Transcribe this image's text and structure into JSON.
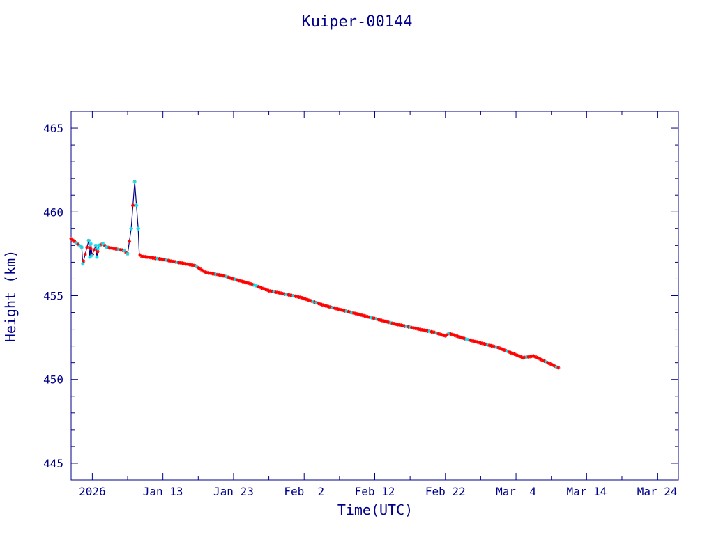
{
  "chart_data": {
    "type": "line",
    "title": "Kuiper-00144",
    "xlabel": "Time(UTC)",
    "ylabel": "Height (km)",
    "x_tick_labels": [
      "2026",
      "Jan 13",
      "Jan 23",
      "Feb  2",
      "Feb 12",
      "Feb 22",
      "Mar  4",
      "Mar 14",
      "Mar 24"
    ],
    "x_tick_dates": [
      "2026-01-03",
      "2026-01-13",
      "2026-01-23",
      "2026-02-02",
      "2026-02-12",
      "2026-02-22",
      "2026-03-04",
      "2026-03-14",
      "2026-03-24"
    ],
    "y_tick_labels": [
      "445",
      "450",
      "455",
      "460",
      "465"
    ],
    "xlim": [
      "2025-12-31",
      "2026-03-27"
    ],
    "ylim": [
      444,
      466
    ],
    "grid": false,
    "colors": {
      "axis": "#00008b",
      "line": "#00008b",
      "marker_primary": "#ff0000",
      "marker_secondary": "#00e5ee"
    },
    "series": [
      {
        "x": [
          "2025-12-31",
          "2026-01-01",
          "2026-01-01",
          "2026-01-02",
          "2026-01-02",
          "2026-01-02",
          "2026-01-02",
          "2026-01-03",
          "2026-01-03",
          "2026-01-03",
          "2026-01-03",
          "2026-01-04",
          "2026-01-05",
          "2026-01-07",
          "2026-01-08",
          "2026-01-08",
          "2026-01-09",
          "2026-01-09",
          "2026-01-09",
          "2026-01-09",
          "2026-01-10",
          "2026-01-12",
          "2026-01-15",
          "2026-01-17",
          "2026-01-19",
          "2026-01-21",
          "2026-01-23",
          "2026-01-25",
          "2026-01-28",
          "2026-02-01",
          "2026-02-05",
          "2026-02-10",
          "2026-02-15",
          "2026-02-20",
          "2026-02-22",
          "2026-02-22",
          "2026-02-25",
          "2026-03-01",
          "2026-03-05",
          "2026-03-06",
          "2026-03-10"
        ],
        "y": [
          458.4,
          457.9,
          456.9,
          458.3,
          457.3,
          458.1,
          457.4,
          458.0,
          457.3,
          457.8,
          458.0,
          458.1,
          457.9,
          457.7,
          457.5,
          459.0,
          461.8,
          459.0,
          457.5,
          457.4,
          457.35,
          457.2,
          457.0,
          456.8,
          456.4,
          456.2,
          456.0,
          455.7,
          455.3,
          454.9,
          454.4,
          453.8,
          453.3,
          452.8,
          452.6,
          452.75,
          452.4,
          451.9,
          451.3,
          451.4,
          450.7
        ],
        "y_range_shown": [
          450.7,
          461.8
        ]
      }
    ]
  }
}
